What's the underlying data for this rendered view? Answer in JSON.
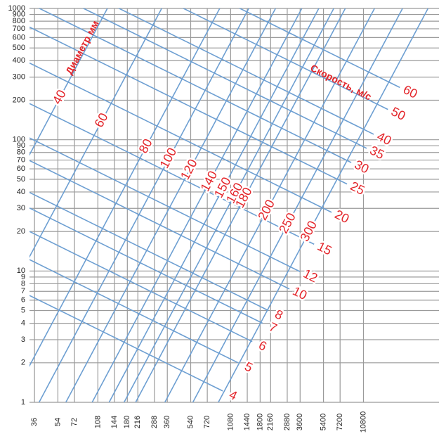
{
  "chart_data": {
    "type": "nomogram",
    "diameter_title": "Диаметр мм",
    "velocity_title": "Скорость, м/с",
    "xlim": [
      33,
      40000
    ],
    "ylim": [
      1,
      1000
    ],
    "log_x": true,
    "log_y": true,
    "grid": true,
    "xticks": [
      36,
      54,
      72,
      108,
      144,
      180,
      216,
      288,
      360,
      540,
      720,
      1080,
      1440,
      1800,
      2160,
      2880,
      3600,
      5400,
      7200,
      10800
    ],
    "yticks": [
      1,
      2,
      3,
      4,
      5,
      6,
      7,
      8,
      9,
      10,
      20,
      30,
      40,
      50,
      60,
      70,
      80,
      90,
      100,
      200,
      300,
      400,
      500,
      600,
      700,
      800,
      900,
      1000
    ],
    "grid_color": "#9a9a9a",
    "line_color": "#6d9fd2",
    "label_color": "#e3262b",
    "diameter_slope": 1.9,
    "velocity_slope": -0.5,
    "diameters": {
      "labels": [
        40,
        60,
        80,
        100,
        120,
        140,
        150,
        160,
        180,
        200,
        250,
        300
      ],
      "x": [
        56,
        116,
        250,
        370,
        530,
        750,
        950,
        1170,
        1370,
        2030,
        2920,
        4220
      ],
      "y": [
        210,
        140,
        89,
        72,
        59,
        48,
        43,
        39,
        36,
        29,
        23,
        20
      ]
    },
    "velocities": {
      "labels": [
        4,
        5,
        6,
        7,
        8,
        10,
        12,
        15,
        20,
        25,
        30,
        35,
        40,
        50,
        60
      ],
      "x": [
        941,
        1230,
        1570,
        1880,
        2080,
        2990,
        3590,
        4590,
        6210,
        8120,
        8740,
        11400,
        12900,
        16500,
        20300
      ],
      "y": [
        1.22,
        2.0,
        2.9,
        4.0,
        5.0,
        7.3,
        9.9,
        16,
        28,
        46,
        67,
        86,
        110,
        170,
        250
      ]
    }
  }
}
